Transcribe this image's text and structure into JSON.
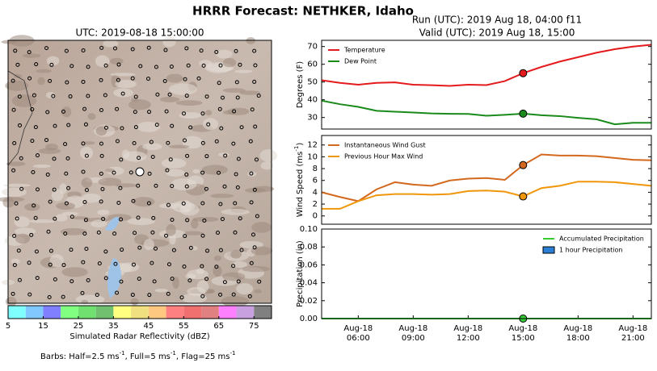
{
  "title": "HRRR Forecast: NETHKER, Idaho",
  "map": {
    "title": "UTC: 2019-08-18 15:00:00"
  },
  "note_parts": [
    "Barbs: Half=2.5 ms",
    "-1",
    ", Full=5 ms",
    "-1",
    ", Flag=25 ms",
    "-1"
  ],
  "chart_data": [
    {
      "type": "colorbar",
      "xlabel": "Simulated Radar Reflectivity (dBZ)",
      "bounds": [
        5,
        10,
        15,
        20,
        25,
        30,
        35,
        40,
        45,
        50,
        55,
        60,
        65,
        70,
        75,
        80
      ],
      "colors": [
        "#80ffff",
        "#80c8ff",
        "#8080ff",
        "#80ff80",
        "#70e070",
        "#70c070",
        "#ffff80",
        "#f0e080",
        "#ffc880",
        "#ff8080",
        "#f07070",
        "#e08080",
        "#ff80ff",
        "#c8a0e0",
        "#808080"
      ],
      "xlim": [
        5,
        80
      ],
      "xticks": [
        5,
        15,
        25,
        35,
        45,
        55,
        65,
        75
      ]
    },
    {
      "type": "line",
      "title": "Run (UTC): 2019 Aug 18, 04:00 f11",
      "subtitle": "Valid (UTC): 2019 Aug 18, 15:00",
      "ylabel_parts": [
        "Degrees (F)"
      ],
      "x": [
        4,
        5,
        6,
        7,
        8,
        9,
        10,
        11,
        12,
        13,
        14,
        15,
        16,
        17,
        18,
        19,
        20,
        21,
        22
      ],
      "xlim": [
        4,
        22
      ],
      "ylim": [
        23.5,
        73.5
      ],
      "yticks": [
        30,
        40,
        50,
        60,
        70
      ],
      "highlight_x": 15,
      "legend": "upper left",
      "series": [
        {
          "name": "Temperature",
          "color": "#e41a1c",
          "values": [
            51,
            49.5,
            48.5,
            49.5,
            49.8,
            48.5,
            48.2,
            47.8,
            48.5,
            48.3,
            50.5,
            55,
            58.5,
            61.5,
            64,
            66.5,
            68.5,
            70,
            71
          ]
        },
        {
          "name": "Dew Point",
          "color": "#1a8a1a",
          "values": [
            39.5,
            37.5,
            36,
            33.8,
            33.3,
            32.8,
            32.3,
            32.1,
            32,
            31,
            31.5,
            32.2,
            31.3,
            30.8,
            29.8,
            29,
            26.2,
            27,
            27
          ]
        }
      ]
    },
    {
      "type": "line",
      "ylabel_parts": [
        "Wind Speed (ms",
        "-1",
        ")"
      ],
      "x": [
        4,
        5,
        6,
        7,
        8,
        9,
        10,
        11,
        12,
        13,
        14,
        15,
        16,
        17,
        18,
        19,
        20,
        21,
        22
      ],
      "xlim": [
        4,
        22
      ],
      "ylim": [
        -1.4,
        13.6
      ],
      "yticks": [
        0,
        2,
        4,
        6,
        8,
        10,
        12
      ],
      "highlight_x": 15,
      "legend": "upper left",
      "series": [
        {
          "name": "Instantaneous Wind Gust",
          "color": "#d2691e",
          "values": [
            4,
            3.2,
            2.5,
            4.5,
            5.7,
            5.3,
            5.1,
            6,
            6.3,
            6.4,
            6.1,
            8.6,
            10.4,
            10.2,
            10.2,
            10.1,
            9.8,
            9.5,
            9.4
          ]
        },
        {
          "name": "Previous Hour Max Wind",
          "color": "#f0960a",
          "values": [
            1.2,
            1.2,
            2.5,
            3.5,
            3.7,
            3.7,
            3.6,
            3.7,
            4.2,
            4.3,
            4.1,
            3.3,
            4.7,
            5.1,
            5.8,
            5.8,
            5.7,
            5.4,
            5.1
          ]
        }
      ]
    },
    {
      "type": "line",
      "ylabel_parts": [
        "Precipitation (in)"
      ],
      "x": [
        4,
        5,
        6,
        7,
        8,
        9,
        10,
        11,
        12,
        13,
        14,
        15,
        16,
        17,
        18,
        19,
        20,
        21,
        22
      ],
      "xlim": [
        4,
        22
      ],
      "ylim": [
        0,
        0.1
      ],
      "yticks": [
        {
          "value": 0,
          "label": "0.00"
        },
        {
          "value": 0.02,
          "label": "0.02"
        },
        {
          "value": 0.04,
          "label": "0.04"
        },
        {
          "value": 0.06,
          "label": "0.06"
        },
        {
          "value": 0.08,
          "label": "0.08"
        },
        {
          "value": 0.1,
          "label": "0.10"
        }
      ],
      "xticks": [
        {
          "value": 6,
          "label": "Aug-18 06:00"
        },
        {
          "value": 9,
          "label": "Aug-18 09:00"
        },
        {
          "value": 12,
          "label": "Aug-18 12:00"
        },
        {
          "value": 15,
          "label": "Aug-18 15:00"
        },
        {
          "value": 18,
          "label": "Aug-18 18:00"
        },
        {
          "value": 21,
          "label": "Aug-18 21:00"
        }
      ],
      "highlight_x": 15,
      "legend": "upper right",
      "series": [
        {
          "name": "Accumulated Precipitation",
          "color": "#33cc33",
          "kind": "line",
          "values": [
            0,
            0,
            0,
            0,
            0,
            0,
            0,
            0,
            0,
            0,
            0,
            0,
            0,
            0,
            0,
            0,
            0,
            0,
            0
          ]
        },
        {
          "name": "1 hour Precipitation",
          "color": "#2a7fd4",
          "kind": "bar",
          "values": [
            0,
            0,
            0,
            0,
            0,
            0,
            0,
            0,
            0,
            0,
            0,
            0,
            0,
            0,
            0,
            0,
            0,
            0,
            0
          ]
        }
      ]
    }
  ]
}
